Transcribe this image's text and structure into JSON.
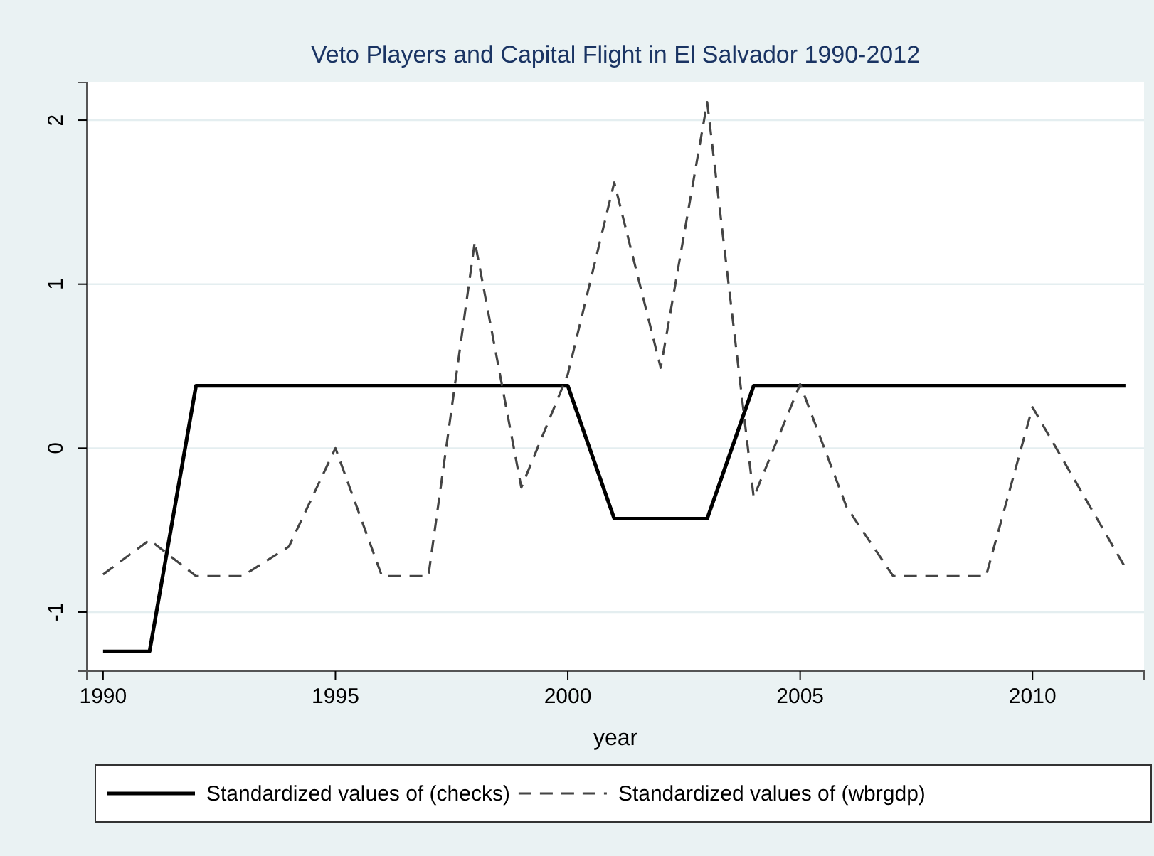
{
  "chart_data": {
    "type": "line",
    "title": "Veto Players and Capital Flight in El Salvador 1990-2012",
    "xlabel": "year",
    "x": [
      1990,
      1991,
      1992,
      1993,
      1994,
      1995,
      1996,
      1997,
      1998,
      1999,
      2000,
      2001,
      2002,
      2003,
      2004,
      2005,
      2006,
      2007,
      2008,
      2009,
      2010,
      2011,
      2012
    ],
    "series": [
      {
        "name": "Standardized values of (checks)",
        "color": "#000000",
        "line_style": "solid",
        "values": [
          -1.24,
          -1.24,
          0.38,
          0.38,
          0.38,
          0.38,
          0.38,
          0.38,
          0.38,
          0.38,
          0.38,
          -0.43,
          -0.43,
          -0.43,
          0.38,
          0.38,
          0.38,
          0.38,
          0.38,
          0.38,
          0.38,
          0.38,
          0.38
        ]
      },
      {
        "name": "Standardized values of (wbrgdp)",
        "color": "#444444",
        "line_style": "dashed",
        "values": [
          -0.77,
          -0.56,
          -0.78,
          -0.78,
          -0.6,
          0.0,
          -0.78,
          -0.78,
          1.26,
          -0.24,
          0.45,
          1.62,
          0.49,
          2.11,
          -0.3,
          0.39,
          -0.36,
          -0.78,
          -0.78,
          -0.78,
          0.25,
          -0.24,
          -0.73
        ]
      }
    ],
    "xlim": [
      1989.65,
      2012.4
    ],
    "ylim": [
      -1.36,
      2.23
    ],
    "xticks": [
      1990,
      1995,
      2000,
      2005,
      2010
    ],
    "yticks": [
      -1,
      0,
      1,
      2
    ],
    "grid": "y",
    "legend": "bottom",
    "marker": "none"
  }
}
